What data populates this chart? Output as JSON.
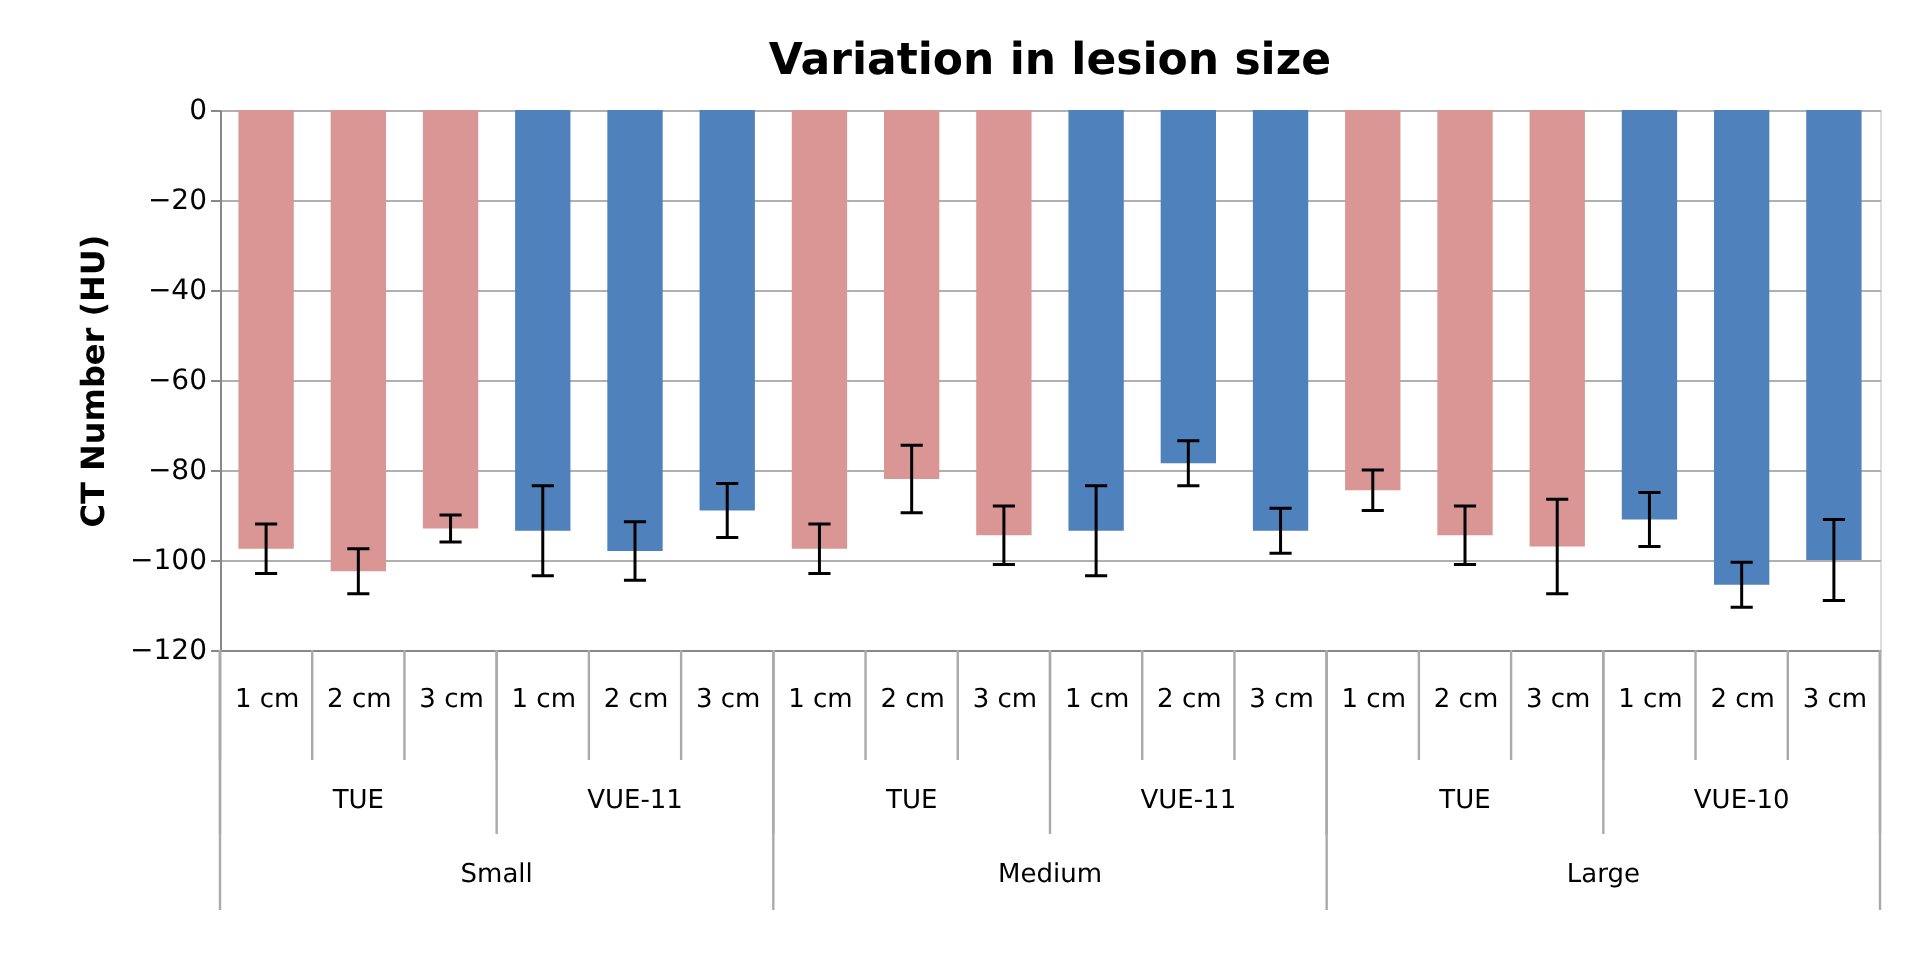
{
  "chart_data": {
    "type": "bar",
    "title": "Variation in lesion size",
    "ylabel": "CT Number (HU)",
    "categories": [
      "1 cm",
      "2 cm",
      "3 cm",
      "1 cm",
      "2 cm",
      "3 cm",
      "1 cm",
      "2 cm",
      "3 cm",
      "1 cm",
      "2 cm",
      "3 cm",
      "1 cm",
      "2 cm",
      "3 cm",
      "1 cm",
      "2 cm",
      "3 cm"
    ],
    "values": [
      -97.5,
      -102.5,
      -93,
      -93.5,
      -98,
      -89,
      -97.5,
      -82,
      -94.5,
      -93.5,
      -78.5,
      -93.5,
      -84.5,
      -94.5,
      -97,
      -91,
      -105.5,
      -100
    ],
    "errors": [
      5.5,
      5,
      3,
      10,
      6.5,
      6,
      5.5,
      7.5,
      6.5,
      10,
      5,
      5,
      4.5,
      6.5,
      10.5,
      6,
      5,
      9
    ],
    "colors": [
      "#d99694",
      "#d99694",
      "#d99694",
      "#4f81bd",
      "#4f81bd",
      "#4f81bd",
      "#d99694",
      "#d99694",
      "#d99694",
      "#4f81bd",
      "#4f81bd",
      "#4f81bd",
      "#d99694",
      "#d99694",
      "#d99694",
      "#4f81bd",
      "#4f81bd",
      "#4f81bd"
    ],
    "annotations": [
      "TUE",
      "VUE-11",
      "TUE",
      "VUE-11",
      "TUE",
      "VUE-10",
      "Small",
      "Medium",
      "Large"
    ],
    "ylim": [
      -120,
      0
    ],
    "yticks": [
      0,
      -20,
      -40,
      -60,
      -80,
      -100,
      -120
    ],
    "grid": "y"
  }
}
